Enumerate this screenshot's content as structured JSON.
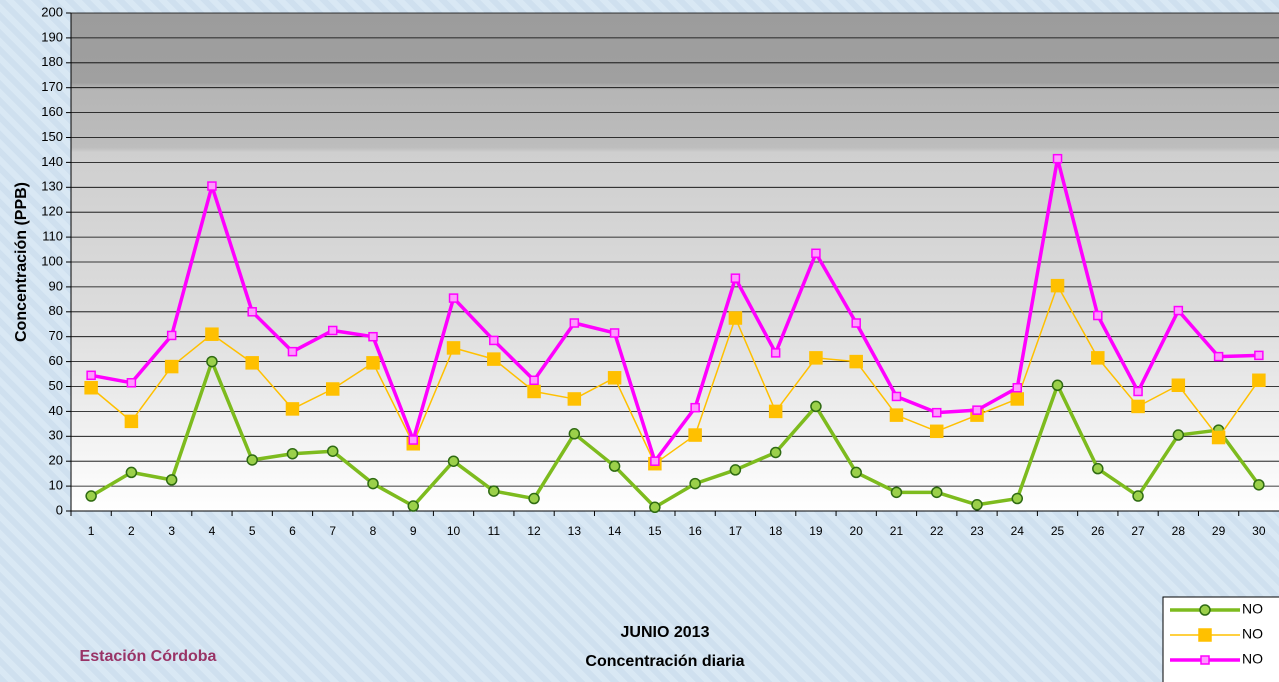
{
  "chart_data": {
    "type": "line",
    "title": "JUNIO 2013",
    "subtitle": "Concentración diaria",
    "station": "Estación Córdoba",
    "y_label": "Concentración  (PPB)",
    "categories": [
      "1",
      "2",
      "3",
      "4",
      "5",
      "6",
      "7",
      "8",
      "9",
      "10",
      "11",
      "12",
      "13",
      "14",
      "15",
      "16",
      "17",
      "18",
      "19",
      "20",
      "21",
      "22",
      "23",
      "24",
      "25",
      "26",
      "27",
      "28",
      "29",
      "30"
    ],
    "series": [
      {
        "name": "NO",
        "color": "#7dbb1e",
        "marker": "circle",
        "values": [
          6,
          15.5,
          12.5,
          60,
          20.5,
          23,
          24,
          11,
          2,
          20,
          8,
          5,
          31,
          18,
          1.5,
          11,
          16.5,
          23.5,
          42,
          15.5,
          7.5,
          7.5,
          2.5,
          5,
          50.5,
          17,
          6,
          30.5,
          32.5,
          10.5
        ]
      },
      {
        "name": "NO",
        "color": "#ffc000",
        "marker": "square",
        "values": [
          49.5,
          36,
          58,
          71,
          59.5,
          41,
          49,
          59.5,
          27,
          65.5,
          61,
          48,
          45,
          53.5,
          19,
          30.5,
          77.5,
          40,
          61.5,
          60,
          38.5,
          32,
          38.5,
          45,
          90.5,
          61.5,
          42,
          50.5,
          29.5,
          52.5
        ]
      },
      {
        "name": "NO",
        "color": "#ff00ff",
        "marker": "small-square",
        "values": [
          54.5,
          51.5,
          70.5,
          130.5,
          80,
          64,
          72.5,
          70,
          28.5,
          85.5,
          68.5,
          52.5,
          75.5,
          71.5,
          20,
          41.5,
          93.5,
          63.5,
          103.5,
          75.5,
          46,
          39.5,
          40.5,
          49.5,
          141.5,
          78.5,
          48,
          80.5,
          62,
          62.5
        ]
      }
    ],
    "ylim": [
      0,
      200
    ],
    "yticks": [
      0,
      10,
      20,
      30,
      40,
      50,
      60,
      70,
      80,
      90,
      100,
      110,
      120,
      130,
      140,
      150,
      160,
      170,
      180,
      190,
      200
    ],
    "grid": true
  }
}
